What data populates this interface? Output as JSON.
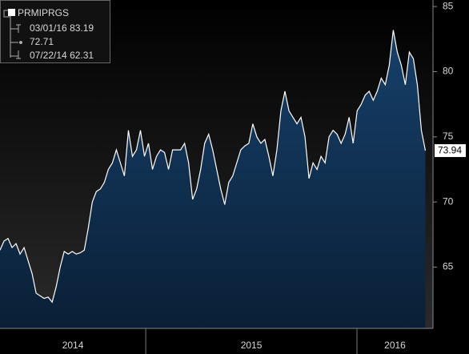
{
  "chart_data": {
    "type": "line",
    "series": [
      {
        "name": "PRMIPRGS",
        "color": "#ffffff",
        "values": [
          66.3,
          67,
          67.2,
          66.5,
          66.8,
          66,
          66.5,
          65.5,
          64.5,
          63,
          62.8,
          62.6,
          62.7,
          62.31,
          63.5,
          65,
          66.2,
          66,
          66.2,
          66,
          66.1,
          66.3,
          68,
          70,
          70.8,
          71,
          71.5,
          72.5,
          73,
          74,
          73,
          72,
          75.5,
          73.5,
          74,
          75.5,
          73.5,
          74.5,
          72.5,
          73.5,
          74,
          73.8,
          72.5,
          74,
          74,
          74,
          74.5,
          73,
          70.2,
          71,
          72.5,
          74.5,
          75.2,
          74,
          72.5,
          71,
          69.8,
          71.5,
          72,
          73,
          74,
          74.3,
          74.5,
          76,
          75,
          74.5,
          74.8,
          73.5,
          72,
          74,
          77,
          78.5,
          77,
          76.5,
          76,
          76.5,
          75,
          71.8,
          73,
          72.5,
          73.5,
          73,
          75,
          75.5,
          75.2,
          74.5,
          75.2,
          76.5,
          74.5,
          77,
          77.5,
          78.2,
          78.5,
          77.8,
          78.5,
          79.5,
          79,
          80.5,
          83.19,
          81.5,
          80.5,
          79,
          81.5,
          81,
          79,
          75.5,
          73.94
        ]
      }
    ],
    "x": [
      2014.31,
      2014.329,
      2014.348,
      2014.367,
      2014.386,
      2014.405,
      2014.424,
      2014.443,
      2014.462,
      2014.481,
      2014.5,
      2014.519,
      2014.538,
      2014.557,
      2014.576,
      2014.595,
      2014.614,
      2014.633,
      2014.652,
      2014.671,
      2014.69,
      2014.709,
      2014.728,
      2014.747,
      2014.766,
      2014.785,
      2014.804,
      2014.823,
      2014.842,
      2014.861,
      2014.88,
      2014.899,
      2014.918,
      2014.937,
      2014.956,
      2014.975,
      2014.994,
      2015.013,
      2015.032,
      2015.051,
      2015.07,
      2015.089,
      2015.108,
      2015.127,
      2015.146,
      2015.165,
      2015.184,
      2015.203,
      2015.222,
      2015.241,
      2015.26,
      2015.279,
      2015.298,
      2015.317,
      2015.336,
      2015.355,
      2015.374,
      2015.393,
      2015.412,
      2015.431,
      2015.45,
      2015.469,
      2015.488,
      2015.507,
      2015.526,
      2015.545,
      2015.564,
      2015.583,
      2015.602,
      2015.621,
      2015.64,
      2015.659,
      2015.678,
      2015.697,
      2015.716,
      2015.735,
      2015.754,
      2015.773,
      2015.792,
      2015.811,
      2015.83,
      2015.849,
      2015.868,
      2015.887,
      2015.906,
      2015.925,
      2015.944,
      2015.963,
      2015.982,
      2016.001,
      2016.02,
      2016.039,
      2016.058,
      2016.077,
      2016.096,
      2016.115,
      2016.134,
      2016.153,
      2016.172,
      2016.191,
      2016.21,
      2016.229,
      2016.248,
      2016.267,
      2016.286,
      2016.305,
      2016.324
    ],
    "xlim": [
      2014.31,
      2016.36
    ],
    "xticks": [
      2015,
      2016
    ],
    "year_labels": [
      "2014",
      "2015",
      "2016"
    ],
    "ylim": [
      60.3,
      85.5
    ],
    "yticks": [
      65,
      70,
      75,
      80,
      85
    ],
    "stats": {
      "high_date": "03/01/16",
      "high": 83.19,
      "average": 72.71,
      "low_date": "07/22/14",
      "low": 62.31
    },
    "last_value": 73.94
  }
}
